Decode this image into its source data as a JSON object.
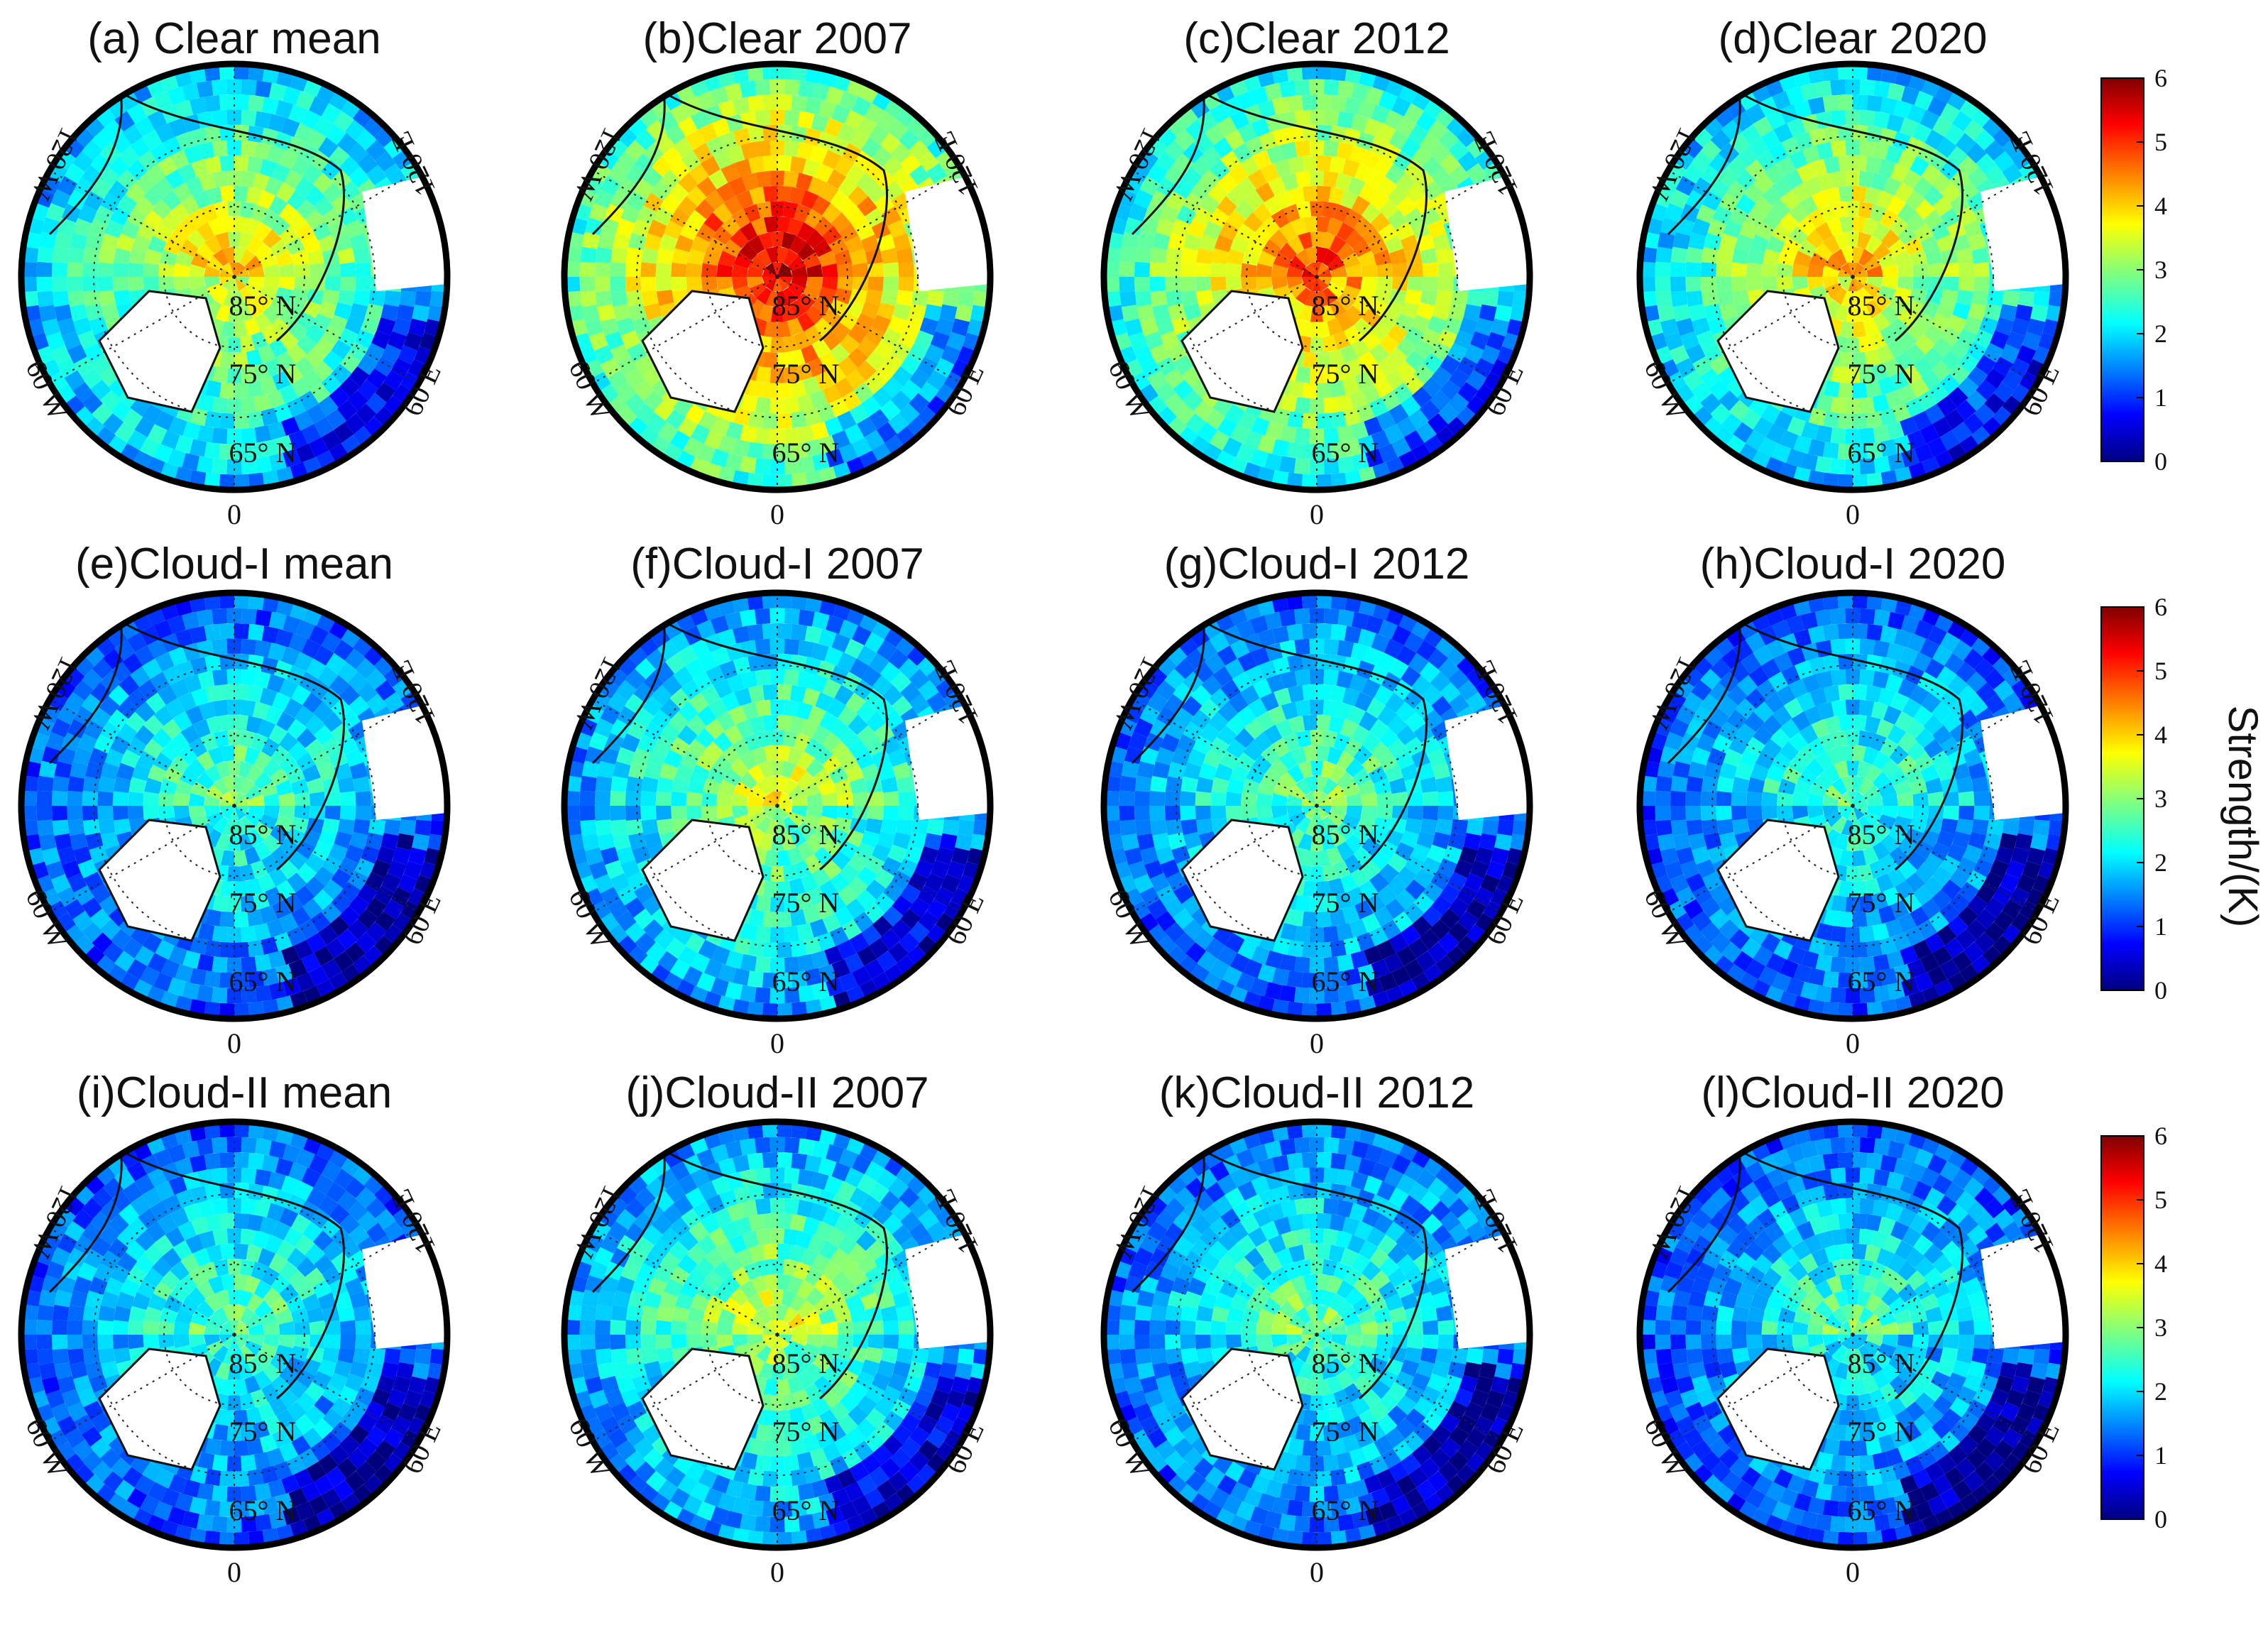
{
  "figure": {
    "colorbar_label": "Strength/(K)",
    "colormap": [
      "#00007f",
      "#0000ff",
      "#007fff",
      "#00ffff",
      "#7fff7f",
      "#ffff00",
      "#ff7f00",
      "#ff0000",
      "#7f0000"
    ]
  },
  "map_labels": {
    "lon_0": "0",
    "lon_60w": "60 W",
    "lon_60e": "60 E",
    "lon_120w": "120 W",
    "lon_120e": "120 E",
    "lat_65": "65° N",
    "lat_75": "75° N",
    "lat_85": "85° N"
  },
  "chart_data": {
    "type": "heatmap",
    "projection": "north polar stereographic",
    "colorbar": {
      "min": 0,
      "max": 6,
      "ticks": [
        0,
        1,
        2,
        3,
        4,
        5,
        6
      ],
      "label": "Strength/(K)"
    },
    "panels": [
      {
        "id": "a",
        "title": "(a) Clear mean",
        "condition": "Clear",
        "period": "mean",
        "level": 3.2
      },
      {
        "id": "b",
        "title": "(b)Clear 2007",
        "condition": "Clear",
        "period": "2007",
        "level": 4.6
      },
      {
        "id": "c",
        "title": "(c)Clear 2012",
        "condition": "Clear",
        "period": "2012",
        "level": 4.0
      },
      {
        "id": "d",
        "title": "(d)Clear 2020",
        "condition": "Clear",
        "period": "2020",
        "level": 3.4
      },
      {
        "id": "e",
        "title": "(e)Cloud-I mean",
        "condition": "Cloud-I",
        "period": "mean",
        "level": 2.2
      },
      {
        "id": "f",
        "title": "(f)Cloud-I 2007",
        "condition": "Cloud-I",
        "period": "2007",
        "level": 2.8
      },
      {
        "id": "g",
        "title": "(g)Cloud-I 2012",
        "condition": "Cloud-I",
        "period": "2012",
        "level": 2.3
      },
      {
        "id": "h",
        "title": "(h)Cloud-I 2020",
        "condition": "Cloud-I",
        "period": "2020",
        "level": 2.1
      },
      {
        "id": "i",
        "title": "(i)Cloud-II mean",
        "condition": "Cloud-II",
        "period": "mean",
        "level": 2.2
      },
      {
        "id": "j",
        "title": "(j)Cloud-II 2007",
        "condition": "Cloud-II",
        "period": "2007",
        "level": 2.8
      },
      {
        "id": "k",
        "title": "(k)Cloud-II 2012",
        "condition": "Cloud-II",
        "period": "2012",
        "level": 2.3
      },
      {
        "id": "l",
        "title": "(l)Cloud-II 2020",
        "condition": "Cloud-II",
        "period": "2020",
        "level": 2.1
      }
    ]
  }
}
